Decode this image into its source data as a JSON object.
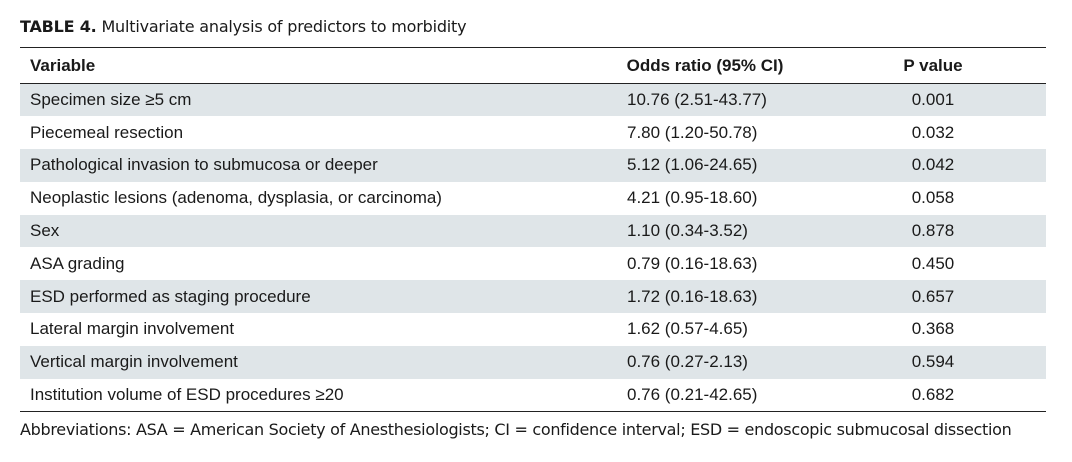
{
  "caption": {
    "label": "TABLE 4.",
    "title": "Multivariate analysis of predictors to morbidity"
  },
  "table": {
    "headers": [
      "Variable",
      "Odds ratio (95% CI)",
      "P value"
    ],
    "rows": [
      [
        "Specimen size ≥5 cm",
        "10.76 (2.51-43.77)",
        "0.001"
      ],
      [
        "Piecemeal resection",
        "7.80 (1.20-50.78)",
        "0.032"
      ],
      [
        "Pathological invasion to submucosa or deeper",
        "5.12 (1.06-24.65)",
        "0.042"
      ],
      [
        "Neoplastic lesions (adenoma, dysplasia, or carcinoma)",
        "4.21 (0.95-18.60)",
        "0.058"
      ],
      [
        "Sex",
        "1.10 (0.34-3.52)",
        "0.878"
      ],
      [
        "ASA grading",
        "0.79 (0.16-18.63)",
        "0.450"
      ],
      [
        "ESD performed as staging procedure",
        "1.72 (0.16-18.63)",
        "0.657"
      ],
      [
        "Lateral margin involvement",
        "1.62 (0.57-4.65)",
        "0.368"
      ],
      [
        "Vertical margin involvement",
        "0.76 (0.27-2.13)",
        "0.594"
      ],
      [
        "Institution volume of ESD procedures ≥20",
        "0.76 (0.21-42.65)",
        "0.682"
      ]
    ]
  },
  "footnote": "Abbreviations:  ASA = American Society of Anesthesiologists; CI = confidence interval; ESD = endoscopic submucosal dissection"
}
